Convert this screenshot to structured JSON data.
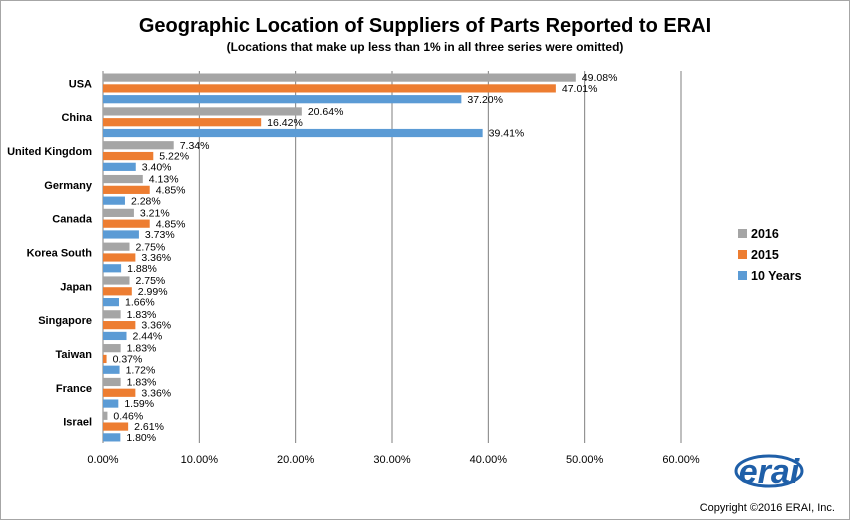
{
  "chart_data": {
    "type": "bar",
    "orientation": "horizontal",
    "title": "Geographic  Location of Suppliers of Parts Reported to ERAI",
    "subtitle": "(Locations that make up less than 1% in all three series were omitted)",
    "categories": [
      "USA",
      "China",
      "United Kingdom",
      "Germany",
      "Canada",
      "Korea South",
      "Japan",
      "Singapore",
      "Taiwan",
      "France",
      "Israel"
    ],
    "series": [
      {
        "name": "2016",
        "color": "#a5a5a5",
        "values": [
          49.08,
          20.64,
          7.34,
          4.13,
          3.21,
          2.75,
          2.75,
          1.83,
          1.83,
          1.83,
          0.46
        ],
        "labels": [
          "49.08%",
          "20.64%",
          "7.34%",
          "4.13%",
          "3.21%",
          "2.75%",
          "2.75%",
          "1.83%",
          "1.83%",
          "1.83%",
          "0.46%"
        ]
      },
      {
        "name": "2015",
        "color": "#ed7d31",
        "values": [
          47.01,
          16.42,
          5.22,
          4.85,
          4.85,
          3.36,
          2.99,
          3.36,
          0.37,
          3.36,
          2.61
        ],
        "labels": [
          "47.01%",
          "16.42%",
          "5.22%",
          "4.85%",
          "4.85%",
          "3.36%",
          "2.99%",
          "3.36%",
          "0.37%",
          "3.36%",
          "2.61%"
        ]
      },
      {
        "name": "10 Years",
        "color": "#5b9bd5",
        "values": [
          37.2,
          39.41,
          3.4,
          2.28,
          3.73,
          1.88,
          1.66,
          2.44,
          1.72,
          1.59,
          1.8
        ],
        "labels": [
          "37.20%",
          "39.41%",
          "3.40%",
          "2.28%",
          "3.73%",
          "1.88%",
          "1.66%",
          "2.44%",
          "1.72%",
          "1.59%",
          "1.80%"
        ]
      }
    ],
    "xlim": [
      0,
      60
    ],
    "xticks": [
      0,
      10,
      20,
      30,
      40,
      50,
      60
    ],
    "xtick_labels": [
      "0.00%",
      "10.00%",
      "20.00%",
      "30.00%",
      "40.00%",
      "50.00%",
      "60.00%"
    ],
    "grid": "vertical",
    "legend_position": "right"
  },
  "logo": {
    "text": "erai"
  },
  "copyright": "Copyright ©2016 ERAI, Inc."
}
